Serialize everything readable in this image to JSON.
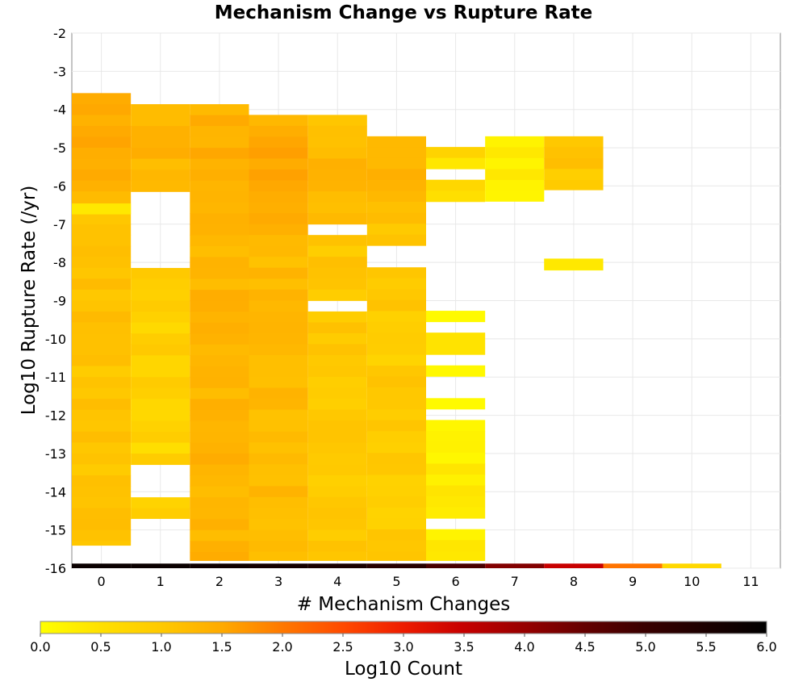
{
  "chart_data": {
    "type": "heatmap",
    "title": "Mechanism Change vs Rupture Rate",
    "xlabel": "# Mechanism Changes",
    "ylabel": "Log10 Rupture Rate (/yr)",
    "x_categories": [
      0,
      1,
      2,
      3,
      4,
      5,
      6,
      7,
      8,
      9,
      10,
      11
    ],
    "xlim": [
      -0.5,
      11.5
    ],
    "ylim": [
      -16,
      -2
    ],
    "y_ticks": [
      -2,
      -3,
      -4,
      -5,
      -6,
      -7,
      -8,
      -9,
      -10,
      -11,
      -12,
      -13,
      -14,
      -15,
      -16
    ],
    "grid": true,
    "bin_height": 0.2857,
    "colorbar": {
      "label": "Log10 Count",
      "range": [
        0,
        6
      ],
      "ticks": [
        "0.0",
        "0.5",
        "1.0",
        "1.5",
        "2.0",
        "2.5",
        "3.0",
        "3.5",
        "4.0",
        "4.5",
        "5.0",
        "5.5",
        "6.0"
      ],
      "colors": [
        "#ffff00",
        "#ffd000",
        "#ffb000",
        "#ff8c00",
        "#ff5a00",
        "#ee1c00",
        "#c80000",
        "#8c0000",
        "#500000",
        "#1e0000",
        "#000000"
      ],
      "placement": "bottom"
    },
    "columns": [
      {
        "x": 0,
        "ymin": -15.4,
        "ymax": -3.57,
        "base": 0.85,
        "peak": 1.35,
        "peak_y": -4.8,
        "gaps": []
      },
      {
        "x": 1,
        "ymin": -14.7,
        "ymax": -3.86,
        "base": 0.6,
        "peak": 1.2,
        "peak_y": -4.8,
        "gaps": [
          [
            -7.3,
            -6.2
          ],
          [
            -8.2,
            -7.3
          ],
          [
            -14.1,
            -13.4
          ]
        ]
      },
      {
        "x": 2,
        "ymin": -15.8,
        "ymax": -3.86,
        "base": 1.1,
        "peak": 1.2,
        "peak_y": -5.5,
        "gaps": []
      },
      {
        "x": 3,
        "ymin": -15.8,
        "ymax": -4.14,
        "base": 1.0,
        "peak": 1.35,
        "peak_y": -5.5,
        "gaps": []
      },
      {
        "x": 4,
        "ymin": -15.8,
        "ymax": -4.14,
        "base": 0.75,
        "peak": 1.1,
        "peak_y": -5.5,
        "gaps": [
          [
            -7.3,
            -7.0
          ],
          [
            -9.3,
            -9.0
          ]
        ]
      },
      {
        "x": 5,
        "ymin": -15.8,
        "ymax": -4.7,
        "base": 0.7,
        "peak": 1.1,
        "peak_y": -5.5,
        "gaps": [
          [
            -8.0,
            -7.6
          ]
        ]
      },
      {
        "x": 6,
        "ymin": -15.8,
        "ymax": -4.98,
        "base": 0.2,
        "peak": 0.5,
        "peak_y": -5.0,
        "gaps": [
          [
            -15.1,
            -14.7
          ],
          [
            -12.1,
            -11.8
          ],
          [
            -11.5,
            -11.1
          ],
          [
            -10.8,
            -10.5
          ],
          [
            -9.9,
            -9.6
          ],
          [
            -9.3,
            -6.5
          ],
          [
            -5.9,
            -5.5
          ],
          [
            -5.3,
            -5.3
          ]
        ]
      },
      {
        "x": 7,
        "ymin": -6.4,
        "ymax": -4.7,
        "base": 0.3,
        "peak": 0.3,
        "peak_y": -5.0,
        "gaps": []
      },
      {
        "x": 8,
        "ymin": -6.1,
        "ymax": -4.7,
        "base": 0.3,
        "peak": 0.9,
        "peak_y": -5.0,
        "gaps": []
      },
      {
        "x": 8,
        "ymin": -8.2,
        "ymax": -7.9,
        "base": 0.3,
        "peak": 0.3,
        "peak_y": -8.0,
        "gaps": []
      }
    ],
    "extra_cells": [
      {
        "x": 0,
        "y": -6.6,
        "value": 0.3
      },
      {
        "x": 8,
        "y": -8.05,
        "value": 0.3
      }
    ],
    "bottom_row": {
      "y": -16,
      "values": [
        5.8,
        5.8,
        5.7,
        5.6,
        5.5,
        5.3,
        4.9,
        4.3,
        3.6,
        2.1,
        0.5,
        null
      ]
    }
  }
}
